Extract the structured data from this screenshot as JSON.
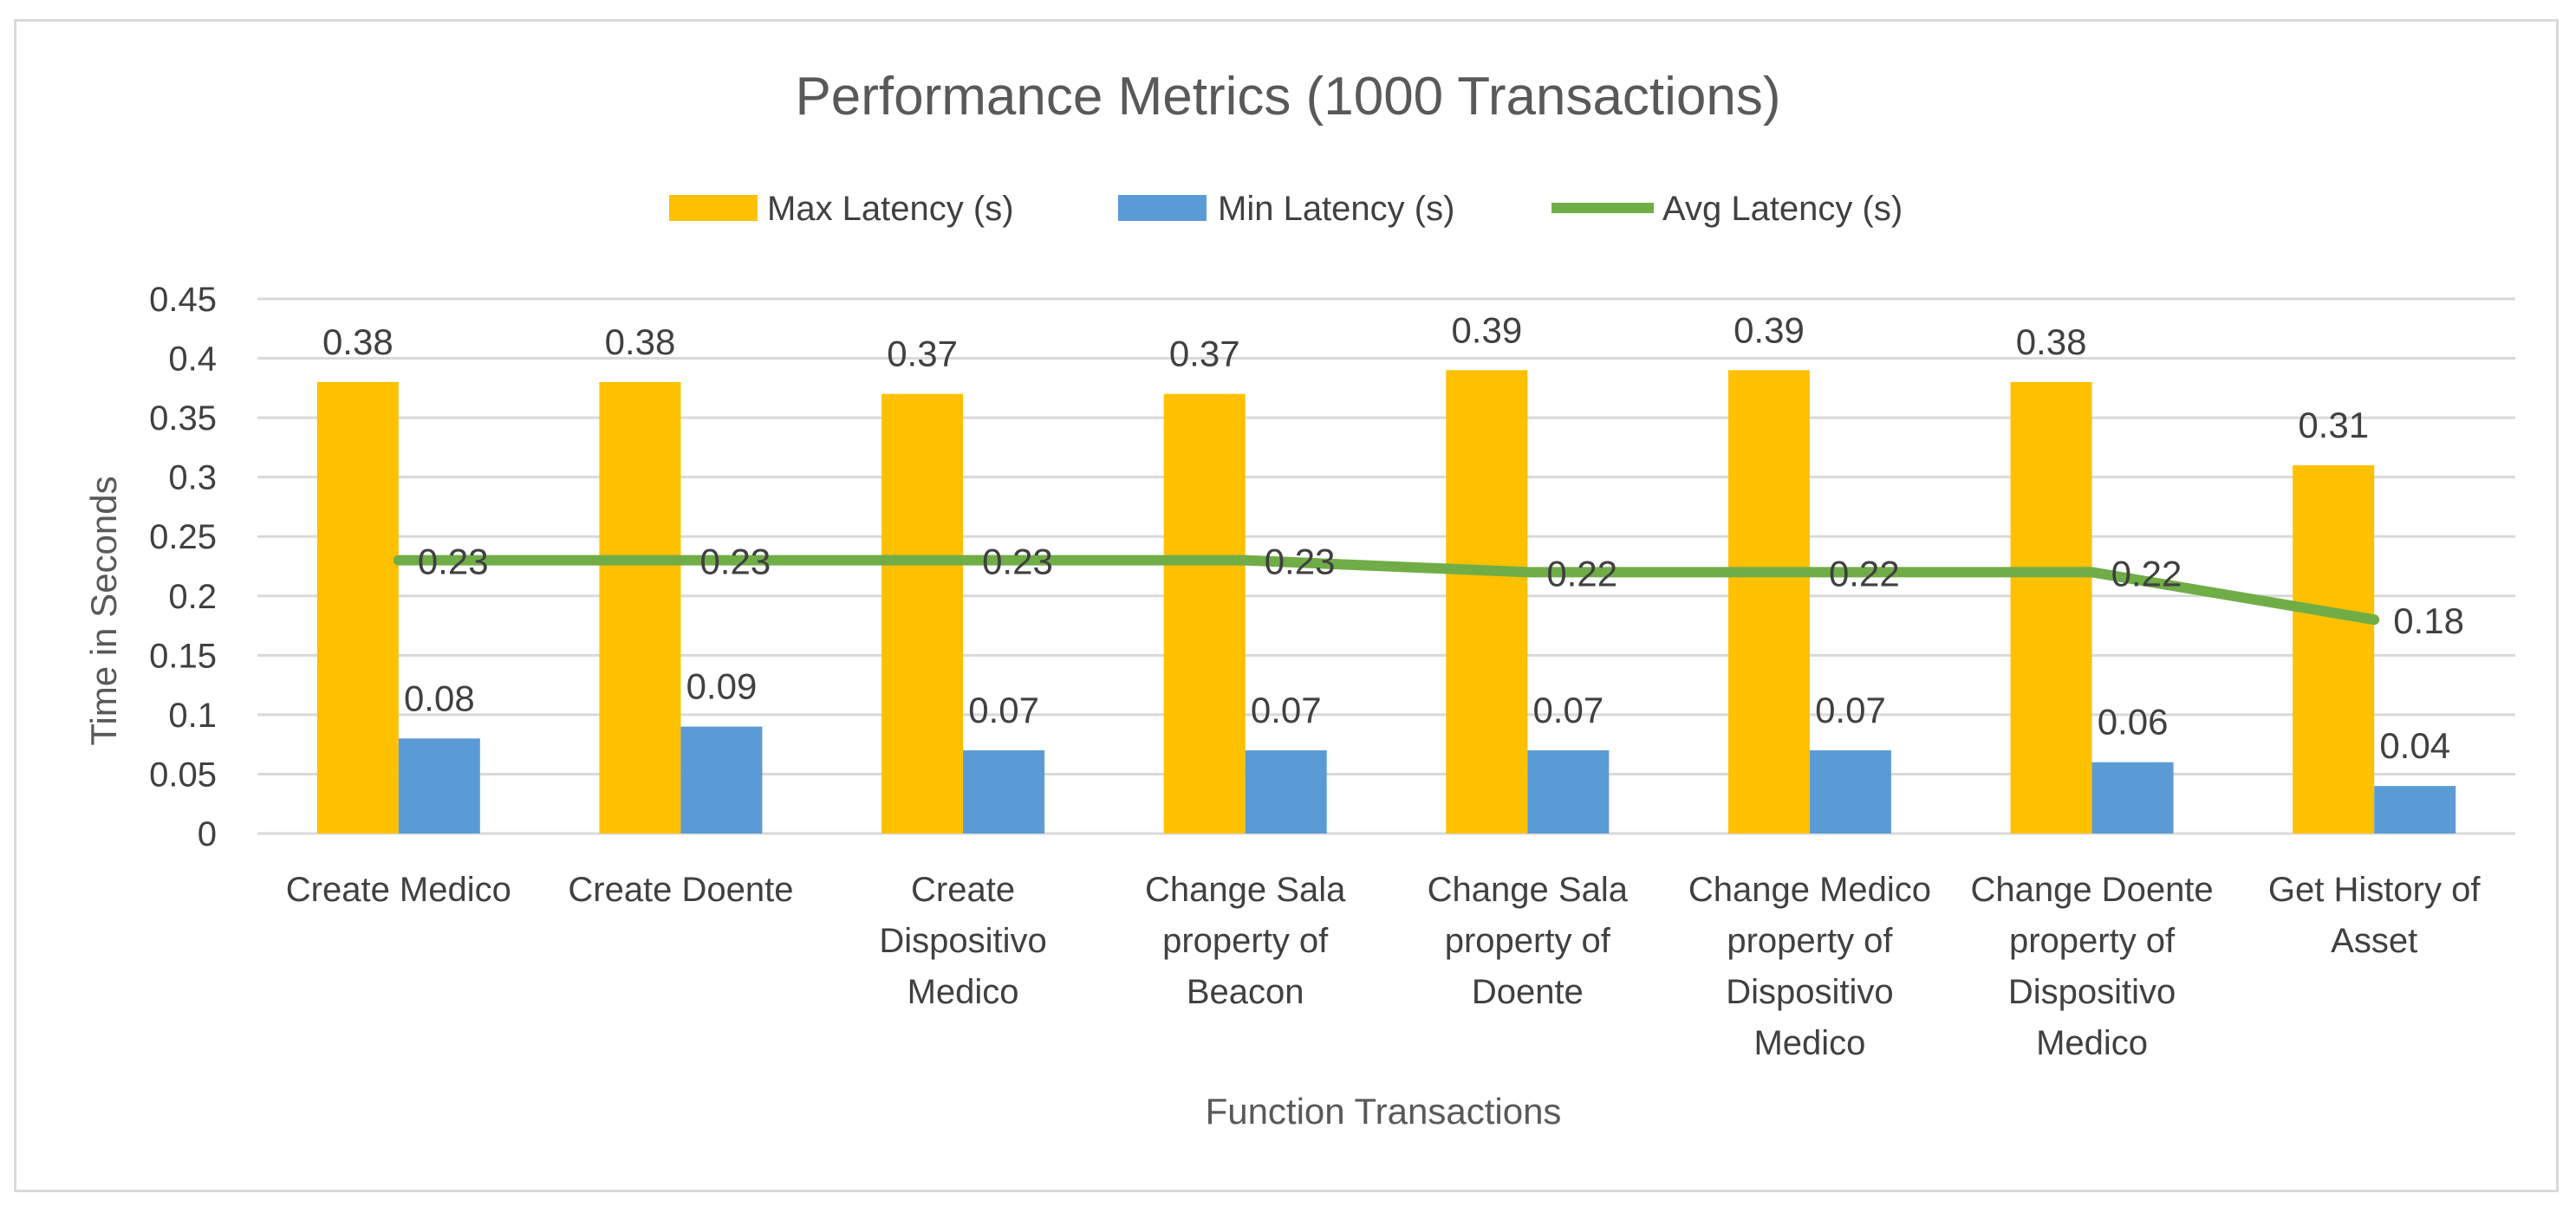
{
  "chart_data": {
    "type": "bar",
    "title": "Performance  Metrics (1000 Transactions)",
    "xlabel": "Function Transactions",
    "ylabel": "Time in Seconds",
    "ylim": [
      0,
      0.45
    ],
    "yticks": [
      "0",
      "0.05",
      "0.1",
      "0.15",
      "0.2",
      "0.25",
      "0.3",
      "0.35",
      "0.4",
      "0.45"
    ],
    "grid": true,
    "legend_position": "top",
    "categories": [
      [
        "Create Medico"
      ],
      [
        "Create Doente"
      ],
      [
        "Create",
        "Dispositivo",
        "Medico"
      ],
      [
        "Change Sala",
        "property of",
        "Beacon"
      ],
      [
        "Change Sala",
        "property of",
        "Doente"
      ],
      [
        "Change Medico",
        "property of",
        "Dispositivo",
        "Medico"
      ],
      [
        "Change Doente",
        "property of",
        "Dispositivo",
        "Medico"
      ],
      [
        "Get History of",
        "Asset"
      ]
    ],
    "series": [
      {
        "name": "Max Latency (s)",
        "kind": "bar",
        "color": "#ffc000",
        "values": [
          0.38,
          0.38,
          0.37,
          0.37,
          0.39,
          0.39,
          0.38,
          0.31
        ],
        "labels": [
          "0.38",
          "0.38",
          "0.37",
          "0.37",
          "0.39",
          "0.39",
          "0.38",
          "0.31"
        ]
      },
      {
        "name": "Min Latency (s)",
        "kind": "bar",
        "color": "#5b9bd5",
        "values": [
          0.08,
          0.09,
          0.07,
          0.07,
          0.07,
          0.07,
          0.06,
          0.04
        ],
        "labels": [
          "0.08",
          "0.09",
          "0.07",
          "0.07",
          "0.07",
          "0.07",
          "0.06",
          "0.04"
        ]
      },
      {
        "name": "Avg Latency (s)",
        "kind": "line",
        "color": "#70ad47",
        "values": [
          0.23,
          0.23,
          0.23,
          0.23,
          0.22,
          0.22,
          0.22,
          0.18
        ],
        "labels": [
          "0.23",
          "0.23",
          "0.23",
          "0.23",
          "0.22",
          "0.22",
          "0.22",
          "0.18"
        ]
      }
    ]
  }
}
